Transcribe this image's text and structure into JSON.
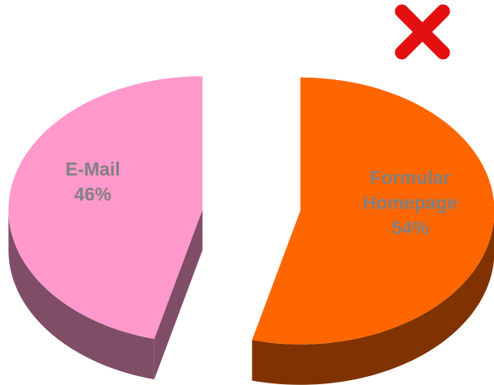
{
  "chart_data": {
    "type": "pie",
    "categories": [
      "E-Mail",
      "Formular Homepage"
    ],
    "values": [
      46,
      54
    ],
    "value_labels": [
      "46%",
      "54%"
    ],
    "colors": [
      "#FF99CC",
      "#FF6600"
    ]
  }
}
